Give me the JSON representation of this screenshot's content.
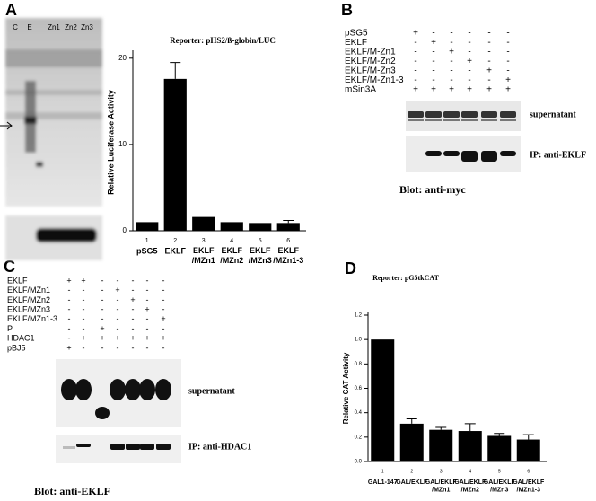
{
  "panel_labels": [
    "A",
    "B",
    "C",
    "D"
  ],
  "gel_a": {
    "lanes": [
      "C",
      "E",
      "Zn1",
      "Zn2",
      "Zn3"
    ]
  },
  "table_b": {
    "rows": [
      {
        "label": "pSG5",
        "marks": [
          "+",
          "-",
          "-",
          "-",
          "-",
          "-"
        ]
      },
      {
        "label": "EKLF",
        "marks": [
          "-",
          "+",
          "-",
          "-",
          "-",
          "-"
        ]
      },
      {
        "label": "EKLF/M-Zn1",
        "marks": [
          "-",
          "-",
          "+",
          "-",
          "-",
          "-"
        ]
      },
      {
        "label": "EKLF/M-Zn2",
        "marks": [
          "-",
          "-",
          "-",
          "+",
          "-",
          "-"
        ]
      },
      {
        "label": "EKLF/M-Zn3",
        "marks": [
          "-",
          "-",
          "-",
          "-",
          "+",
          "-"
        ]
      },
      {
        "label": "EKLF/M-Zn1-3",
        "marks": [
          "-",
          "-",
          "-",
          "-",
          "-",
          "+"
        ]
      },
      {
        "label": "mSin3A",
        "marks": [
          "+",
          "+",
          "+",
          "+",
          "+",
          "+"
        ]
      }
    ]
  },
  "blot_b": {
    "supernatant": "supernatant",
    "ip": "IP:  anti-EKLF",
    "caption": "Blot:  anti-myc"
  },
  "table_c": {
    "rows": [
      {
        "label": "EKLF",
        "marks": [
          "+",
          "+",
          "-",
          "-",
          "-",
          "-",
          "-"
        ]
      },
      {
        "label": "EKLF/MZn1",
        "marks": [
          "-",
          "-",
          "-",
          "+",
          "-",
          "-",
          "-"
        ]
      },
      {
        "label": "EKLF/MZn2",
        "marks": [
          "-",
          "-",
          "-",
          "-",
          "+",
          "-",
          "-"
        ]
      },
      {
        "label": "EKLF/MZn3",
        "marks": [
          "-",
          "-",
          "-",
          "-",
          "-",
          "+",
          "-"
        ]
      },
      {
        "label": "EKLF/MZn1-3",
        "marks": [
          "-",
          "-",
          "-",
          "-",
          "-",
          "-",
          "+"
        ]
      },
      {
        "label": "P",
        "marks": [
          "-",
          "-",
          "+",
          "-",
          "-",
          "-",
          "-"
        ]
      },
      {
        "label": "HDAC1",
        "marks": [
          "-",
          "+",
          "+",
          "+",
          "+",
          "+",
          "+"
        ]
      },
      {
        "label": "pBJ5",
        "marks": [
          "+",
          "-",
          "-",
          "-",
          "-",
          "-",
          "-"
        ]
      }
    ]
  },
  "blot_c": {
    "supernatant": "supernatant",
    "ip": "IP:  anti-HDAC1",
    "caption": "Blot:  anti-EKLF"
  },
  "chart_data": [
    {
      "type": "bar",
      "title": "Reporter: pHS2/ß-globin/LUC",
      "ylabel": "Relative Luciferase Activity",
      "category_numbers": [
        "1",
        "2",
        "3",
        "4",
        "5",
        "6"
      ],
      "categories": [
        "pSG5",
        "EKLF",
        "EKLF /MZn1",
        "EKLF /MZn2",
        "EKLF /MZn3",
        "EKLF /MZn1-3"
      ],
      "values": [
        1.0,
        17.6,
        1.6,
        1.0,
        0.9,
        0.9
      ],
      "errors": [
        0,
        1.9,
        0,
        0,
        0,
        0.3
      ],
      "color": "#000000",
      "ylim": [
        0,
        20.5
      ],
      "yticks": [
        0,
        10,
        20
      ]
    },
    {
      "type": "bar",
      "title": "Reporter: pG5tkCAT",
      "ylabel": "Relative CAT Activity",
      "category_numbers": [
        "1",
        "2",
        "3",
        "4",
        "5",
        "6"
      ],
      "categories": [
        "GAL1-147",
        "GAL/EKLF",
        "GAL/EKLF /MZn1",
        "GAL/EKLF /MZn2",
        "GAL/EKLF /MZn3",
        "GAL/EKLF /MZn1-3"
      ],
      "values": [
        1.0,
        0.31,
        0.26,
        0.25,
        0.21,
        0.18
      ],
      "errors": [
        0,
        0.04,
        0.02,
        0.06,
        0.02,
        0.04
      ],
      "color": "#000000",
      "ylim": [
        0,
        1.2
      ],
      "yticks": [
        {
          "value": 0,
          "label": "0.0"
        },
        {
          "value": 0.2,
          "label": "0.2"
        },
        {
          "value": 0.4,
          "label": "0.4"
        },
        {
          "value": 0.6,
          "label": "0.6"
        },
        {
          "value": 0.8,
          "label": "0.8"
        },
        {
          "value": 1.0,
          "label": "1.0"
        },
        {
          "value": 1.2,
          "label": "1.2"
        }
      ]
    }
  ]
}
